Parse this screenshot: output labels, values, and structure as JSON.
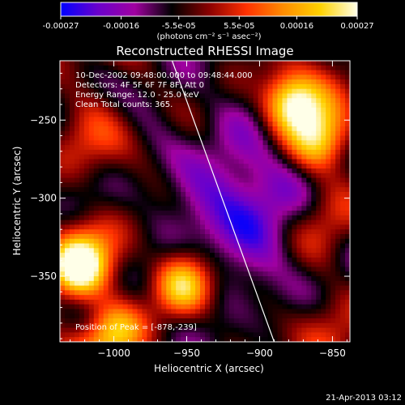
{
  "colorbar": {
    "tick_labels": [
      "-0.00027",
      "-0.00016",
      "-5.5e-05",
      "5.5e-05",
      "0.00016",
      "0.00027"
    ],
    "tick_values": [
      -0.00027,
      -0.00016,
      -5.5e-05,
      5.5e-05,
      0.00016,
      0.00027
    ],
    "range": [
      -0.00027,
      0.00027
    ],
    "unit_label": "(photons cm⁻² s⁻¹ asec⁻²)",
    "colors": [
      "#0000ff",
      "#6a00cc",
      "#a000a0",
      "#000000",
      "#8a0000",
      "#ff3000",
      "#ff8c00",
      "#ffd200",
      "#ffffe8"
    ]
  },
  "chart_data": {
    "type": "heatmap",
    "title": "Reconstructed RHESSI Image",
    "xlabel": "Heliocentric X (arcsec)",
    "ylabel": "Heliocentric Y (arcsec)",
    "xlim": [
      -1037,
      -838
    ],
    "ylim": [
      -392,
      -212
    ],
    "x_ticks": [
      -1000,
      -950,
      -900,
      -850
    ],
    "x_tick_labels": [
      "−1000",
      "−950",
      "−900",
      "−850"
    ],
    "y_ticks": [
      -250,
      -300,
      -350
    ],
    "y_tick_labels": [
      "−250",
      "−300",
      "−350"
    ],
    "info_lines": [
      "10-Dec-2002 09:48:00.000 to 09:48:44.000",
      "Detectors: 4F 5F 6F 7F 8F, Att 0",
      "Energy Range: 12.0 - 25.0 keV",
      "Clean     Total counts: 365."
    ],
    "peak_label": "Position of Peak = [-878,-239]",
    "peak": [
      -878,
      -239
    ],
    "limb_line": [
      [
        -960,
        -212
      ],
      [
        -890,
        -392
      ]
    ],
    "bright_sources": [
      {
        "x": -1025,
        "y": -345,
        "level": 0.00027
      },
      {
        "x": -952,
        "y": -355,
        "level": 0.00024
      },
      {
        "x": -878,
        "y": -239,
        "level": 0.00027
      },
      {
        "x": -860,
        "y": -265,
        "level": 0.00018
      },
      {
        "x": -1000,
        "y": -385,
        "level": 0.00015
      }
    ],
    "dark_region": {
      "x": -910,
      "y": -305,
      "level": -0.0002
    }
  },
  "footer": {
    "date": "21-Apr-2013 03:12"
  }
}
